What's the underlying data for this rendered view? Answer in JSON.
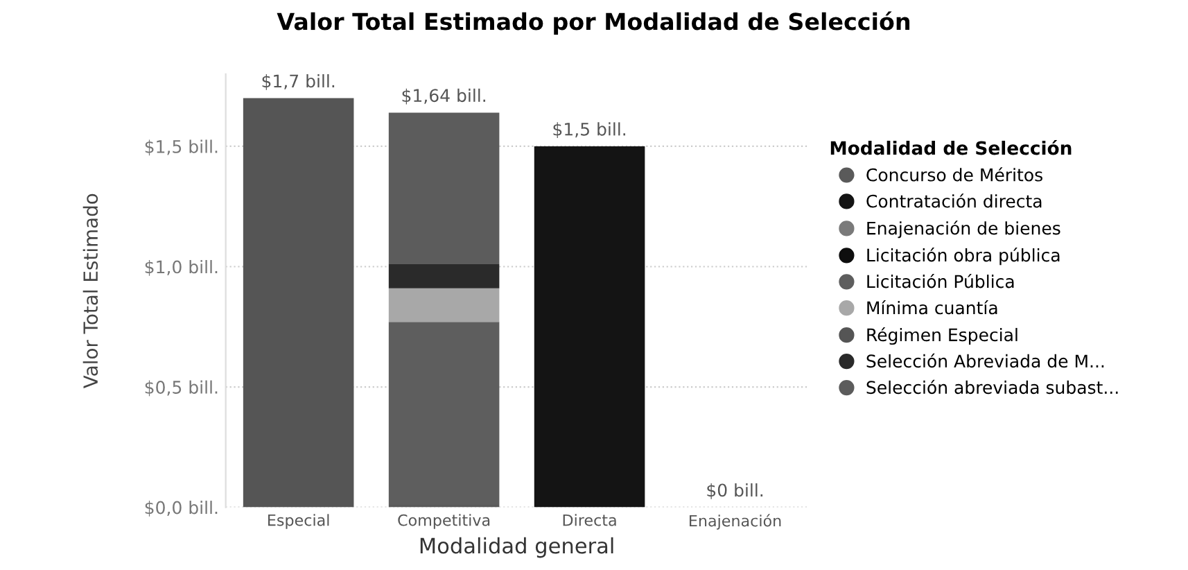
{
  "chart_data": {
    "type": "bar",
    "stacked": true,
    "title": "Valor Total Estimado por Modalidad de Selección",
    "xlabel": "Modalidad general",
    "ylabel": "Valor Total Estimado",
    "legend_title": "Modalidad de Selección",
    "legend": "right",
    "grid": "y",
    "categories": [
      "Especial",
      "Competitiva",
      "Directa",
      "Enajenación"
    ],
    "series": [
      {
        "name": "Concurso de Méritos",
        "color": "#5a5a5a",
        "values": [
          null,
          0.01,
          null,
          null
        ]
      },
      {
        "name": "Contratación directa",
        "color": "#141414",
        "values": [
          null,
          null,
          1.5,
          null
        ]
      },
      {
        "name": "Enajenación de bienes",
        "color": "#7a7a7a",
        "values": [
          null,
          null,
          null,
          0
        ]
      },
      {
        "name": "Licitación obra pública",
        "color": "#0e0e0e",
        "values": [
          null,
          null,
          null,
          null
        ]
      },
      {
        "name": "Licitación Pública",
        "color": "#5e5e5e",
        "values": [
          null,
          0.76,
          null,
          null
        ]
      },
      {
        "name": "Mínima cuantía",
        "color": "#a8a8a8",
        "values": [
          null,
          0.14,
          null,
          null
        ]
      },
      {
        "name": "Régimen Especial",
        "color": "#555555",
        "values": [
          1.7,
          null,
          null,
          null
        ]
      },
      {
        "name": "Selección Abreviada de M...",
        "color": "#2a2a2a",
        "values": [
          null,
          0.1,
          null,
          null
        ]
      },
      {
        "name": "Selección abreviada subast...",
        "color": "#5c5c5c",
        "values": [
          null,
          0.63,
          null,
          null
        ]
      }
    ],
    "totals": [
      "$1,7 bill.",
      "$1,64 bill.",
      "$1,5 bill.",
      "$0 bill."
    ],
    "ylim": [
      0,
      1.8
    ],
    "yticks": [
      {
        "value": 0,
        "label": "$0,0 bill."
      },
      {
        "value": 0.5,
        "label": "$0,5 bill."
      },
      {
        "value": 1.0,
        "label": "$1,0 bill."
      },
      {
        "value": 1.5,
        "label": "$1,5 bill."
      }
    ]
  }
}
